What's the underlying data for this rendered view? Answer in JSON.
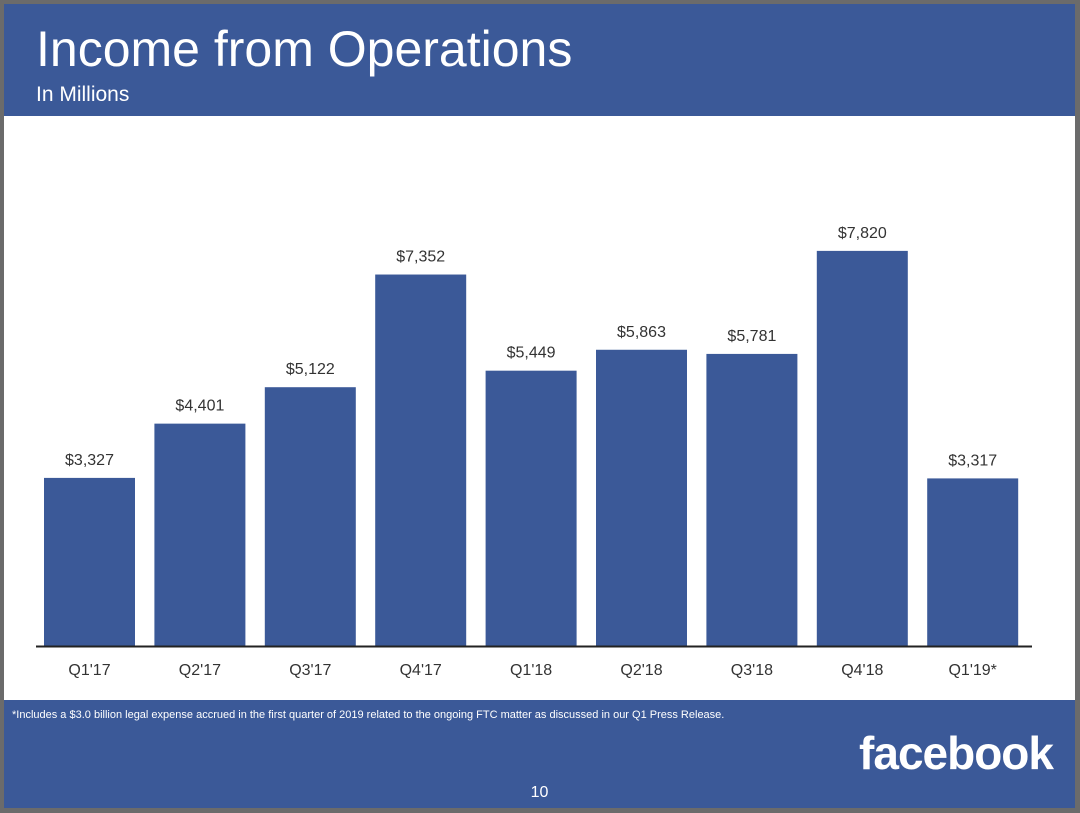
{
  "slide": {
    "title": "Income from Operations",
    "subtitle": "In Millions",
    "footnote": "*Includes a $3.0 billion legal expense accrued in the first quarter of 2019 related to the ongoing FTC matter as discussed in our Q1 Press Release.",
    "logo_text": "facebook",
    "page_number": "10"
  },
  "colors": {
    "brand": "#3b5998",
    "bar": "#3b5998",
    "label": "#333333",
    "axis": "#222222"
  },
  "chart_data": {
    "type": "bar",
    "title": "Income from Operations",
    "subtitle": "In Millions",
    "xlabel": "",
    "ylabel": "",
    "ylim": [
      0,
      9500
    ],
    "grid": false,
    "categories": [
      "Q1'17",
      "Q2'17",
      "Q3'17",
      "Q4'17",
      "Q1'18",
      "Q2'18",
      "Q3'18",
      "Q4'18",
      "Q1'19*"
    ],
    "values": [
      3327,
      4401,
      5122,
      7352,
      5449,
      5863,
      5781,
      7820,
      3317
    ],
    "value_labels": [
      "$3,327",
      "$4,401",
      "$5,122",
      "$7,352",
      "$5,449",
      "$5,863",
      "$5,781",
      "$7,820",
      "$3,317"
    ]
  }
}
